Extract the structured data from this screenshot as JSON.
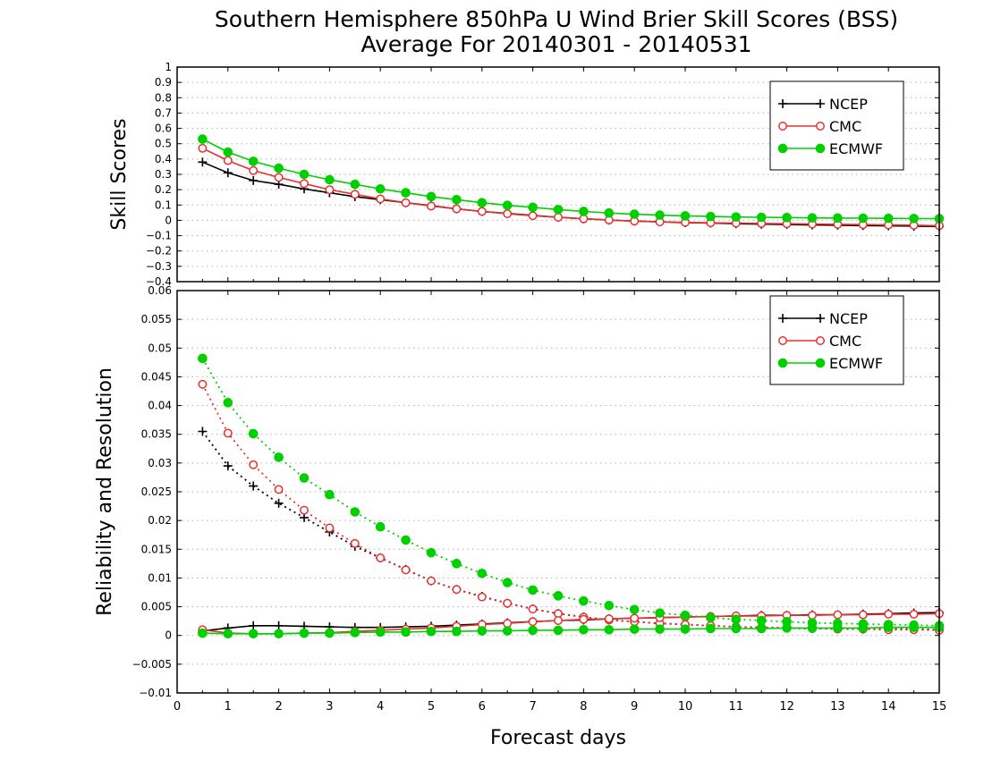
{
  "title_line1": "Southern Hemisphere 850hPa U Wind Brier Skill Scores (BSS)",
  "title_line2": "Average For 20140301 - 20140531",
  "colors": {
    "NCEP": "#000000",
    "CMC": "#e83030",
    "ECMWF": "#00d000",
    "grid": "#b0b0b0"
  },
  "chart_data": [
    {
      "type": "line",
      "panel": "top",
      "ylabel": "Skill Scores",
      "xlabel": "",
      "xlim": [
        0,
        15
      ],
      "ylim": [
        -0.4,
        1
      ],
      "yticks": [
        "1",
        "0.9",
        "0.8",
        "0.7",
        "0.6",
        "0.5",
        "0.4",
        "0.3",
        "0.2",
        "0.1",
        "0",
        "−0.1",
        "−0.2",
        "−0.3",
        "−0.4"
      ],
      "grid": true,
      "legend": {
        "placement": "top-right",
        "entries": [
          "NCEP",
          "CMC",
          "ECMWF"
        ]
      },
      "x": [
        0.5,
        1,
        1.5,
        2,
        2.5,
        3,
        3.5,
        4,
        4.5,
        5,
        5.5,
        6,
        6.5,
        7,
        7.5,
        8,
        8.5,
        9,
        9.5,
        10,
        10.5,
        11,
        11.5,
        12,
        12.5,
        13,
        13.5,
        14,
        14.5,
        15
      ],
      "series": [
        {
          "name": "NCEP",
          "marker": "plus",
          "style": "solid",
          "values": [
            0.38,
            0.31,
            0.26,
            0.235,
            0.205,
            0.18,
            0.155,
            0.135,
            0.115,
            0.095,
            0.075,
            0.058,
            0.045,
            0.032,
            0.02,
            0.01,
            0.002,
            -0.005,
            -0.01,
            -0.015,
            -0.018,
            -0.022,
            -0.025,
            -0.027,
            -0.03,
            -0.032,
            -0.034,
            -0.036,
            -0.038,
            -0.04
          ]
        },
        {
          "name": "CMC",
          "marker": "open-circle",
          "style": "solid",
          "values": [
            0.47,
            0.39,
            0.325,
            0.28,
            0.24,
            0.2,
            0.17,
            0.14,
            0.115,
            0.093,
            0.075,
            0.058,
            0.043,
            0.03,
            0.02,
            0.01,
            0.002,
            -0.005,
            -0.01,
            -0.013,
            -0.016,
            -0.018,
            -0.02,
            -0.022,
            -0.024,
            -0.026,
            -0.028,
            -0.03,
            -0.032,
            -0.035
          ]
        },
        {
          "name": "ECMWF",
          "marker": "filled-circle",
          "style": "solid",
          "values": [
            0.53,
            0.445,
            0.385,
            0.34,
            0.3,
            0.265,
            0.235,
            0.205,
            0.18,
            0.155,
            0.135,
            0.115,
            0.098,
            0.085,
            0.07,
            0.058,
            0.048,
            0.04,
            0.034,
            0.029,
            0.025,
            0.022,
            0.02,
            0.018,
            0.016,
            0.015,
            0.014,
            0.013,
            0.012,
            0.011
          ]
        }
      ]
    },
    {
      "type": "line",
      "panel": "bottom",
      "ylabel": "Reliability and Resolution",
      "xlabel": "Forecast days",
      "xlim": [
        0,
        15
      ],
      "ylim": [
        -0.01,
        0.06
      ],
      "xticks": [
        "0",
        "1",
        "2",
        "3",
        "4",
        "5",
        "6",
        "7",
        "8",
        "9",
        "10",
        "11",
        "12",
        "13",
        "14",
        "15"
      ],
      "yticks": [
        "0.06",
        "0.055",
        "0.05",
        "0.045",
        "0.04",
        "0.035",
        "0.03",
        "0.025",
        "0.02",
        "0.015",
        "0.01",
        "0.005",
        "0",
        "−0.005",
        "−0.01"
      ],
      "grid": true,
      "legend": {
        "placement": "top-right",
        "entries": [
          "NCEP",
          "CMC",
          "ECMWF"
        ]
      },
      "x": [
        0.5,
        1,
        1.5,
        2,
        2.5,
        3,
        3.5,
        4,
        4.5,
        5,
        5.5,
        6,
        6.5,
        7,
        7.5,
        8,
        8.5,
        9,
        9.5,
        10,
        10.5,
        11,
        11.5,
        12,
        12.5,
        13,
        13.5,
        14,
        14.5,
        15
      ],
      "series": [
        {
          "name": "NCEP",
          "component": "resolution",
          "marker": "plus",
          "style": "dotted",
          "values": [
            0.0355,
            0.0295,
            0.026,
            0.023,
            0.0205,
            0.018,
            0.0155,
            0.0135,
            0.0115,
            0.0095,
            0.008,
            0.0068,
            0.0056,
            0.0046,
            0.0038,
            0.0032,
            0.0027,
            0.0024,
            0.0021,
            0.0019,
            0.0017,
            0.0015,
            0.0014,
            0.0013,
            0.0012,
            0.0012,
            0.0011,
            0.0011,
            0.0011,
            0.001
          ]
        },
        {
          "name": "NCEP",
          "component": "reliability",
          "marker": "plus",
          "style": "solid",
          "values": [
            0.0008,
            0.0013,
            0.0017,
            0.0017,
            0.0016,
            0.0015,
            0.0014,
            0.0014,
            0.0015,
            0.0016,
            0.0018,
            0.002,
            0.0022,
            0.0024,
            0.0026,
            0.0027,
            0.0029,
            0.003,
            0.0031,
            0.0032,
            0.0033,
            0.0034,
            0.0035,
            0.0035,
            0.0036,
            0.0036,
            0.0037,
            0.0038,
            0.0039,
            0.004
          ]
        },
        {
          "name": "CMC",
          "component": "resolution",
          "marker": "open-circle",
          "style": "dotted",
          "values": [
            0.0437,
            0.0352,
            0.0297,
            0.0254,
            0.0218,
            0.0187,
            0.016,
            0.0135,
            0.0114,
            0.0095,
            0.008,
            0.0067,
            0.0056,
            0.0046,
            0.0038,
            0.0032,
            0.0027,
            0.0024,
            0.0021,
            0.0019,
            0.0017,
            0.0015,
            0.0014,
            0.0013,
            0.0012,
            0.0011,
            0.0011,
            0.001,
            0.001,
            0.0009
          ]
        },
        {
          "name": "CMC",
          "component": "reliability",
          "marker": "open-circle",
          "style": "solid",
          "values": [
            0.001,
            0.0004,
            0.0003,
            0.0003,
            0.0004,
            0.0005,
            0.0007,
            0.0009,
            0.0011,
            0.0013,
            0.0016,
            0.0019,
            0.0021,
            0.0024,
            0.0026,
            0.0028,
            0.0029,
            0.003,
            0.0031,
            0.0032,
            0.0033,
            0.0034,
            0.0034,
            0.0035,
            0.0035,
            0.0036,
            0.0036,
            0.0037,
            0.0037,
            0.0038
          ]
        },
        {
          "name": "ECMWF",
          "component": "resolution",
          "marker": "filled-circle",
          "style": "dotted",
          "values": [
            0.0482,
            0.0405,
            0.0351,
            0.031,
            0.0274,
            0.0245,
            0.0215,
            0.0189,
            0.0166,
            0.0144,
            0.0125,
            0.0108,
            0.0092,
            0.0079,
            0.0069,
            0.006,
            0.0052,
            0.0045,
            0.0039,
            0.0035,
            0.0031,
            0.0028,
            0.0026,
            0.0024,
            0.0022,
            0.0021,
            0.002,
            0.0019,
            0.0018,
            0.0017
          ]
        },
        {
          "name": "ECMWF",
          "component": "reliability",
          "marker": "filled-circle",
          "style": "solid",
          "values": [
            0.0004,
            0.0003,
            0.0003,
            0.0003,
            0.0004,
            0.0004,
            0.0005,
            0.0006,
            0.0006,
            0.0007,
            0.0007,
            0.0008,
            0.0008,
            0.0009,
            0.0009,
            0.001,
            0.001,
            0.0011,
            0.0011,
            0.0011,
            0.0012,
            0.0012,
            0.0012,
            0.0013,
            0.0013,
            0.0013,
            0.0013,
            0.0014,
            0.0014,
            0.0014
          ]
        }
      ]
    }
  ]
}
